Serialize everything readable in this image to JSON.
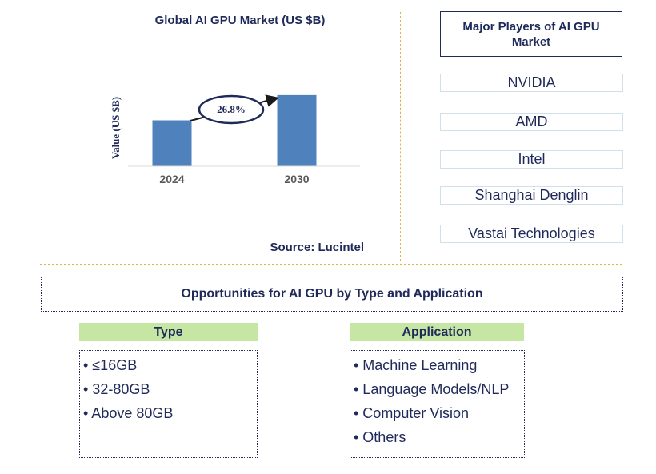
{
  "chart_data": {
    "type": "bar",
    "title": "Global AI GPU Market (US $B)",
    "ylabel": "Value (US $B)",
    "categories": [
      "2024",
      "2030"
    ],
    "values": [
      1,
      1.55
    ],
    "ylim": [
      0,
      1.6
    ],
    "bar_color": "#4f81bd",
    "annotation": "26.8%",
    "source": "Source: Lucintel"
  },
  "players": {
    "title": "Major Players of AI GPU Market",
    "items": [
      "NVIDIA",
      "AMD",
      "Intel",
      "Shanghai Denglin",
      "Vastai Technologies"
    ]
  },
  "opportunities": {
    "title": "Opportunities for AI GPU by Type and Application",
    "type": {
      "header": "Type",
      "items": [
        "• ≤16GB",
        "• 32-80GB",
        "• Above 80GB"
      ]
    },
    "application": {
      "header": "Application",
      "items": [
        "• Machine Learning",
        "• Language Models/NLP",
        "• Computer Vision",
        "• Others"
      ]
    }
  },
  "colors": {
    "text": "#1f2a5a",
    "header_green": "#c6e7a4",
    "divider": "#e4b04a"
  }
}
